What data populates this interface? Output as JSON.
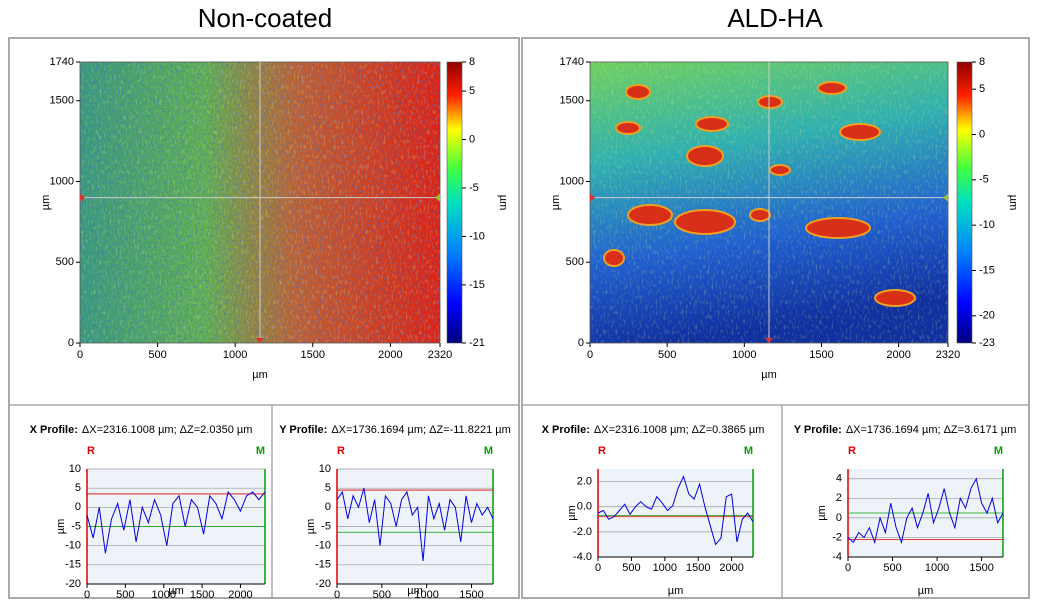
{
  "chart_data": [
    {
      "type": "heatmap",
      "title": "Non-coated",
      "xlabel": "µm",
      "ylabel": "µm",
      "colorbar_label": "µm",
      "xlim": [
        0,
        2320
      ],
      "ylim": [
        0,
        1740
      ],
      "xticks": [
        0,
        500,
        1000,
        1500,
        2000,
        2320
      ],
      "yticks": [
        0,
        500,
        1000,
        1500,
        1740
      ],
      "zlim": [
        -21,
        8
      ],
      "zticks": [
        -21,
        -15,
        -10,
        -5,
        0,
        5,
        8
      ],
      "cursor": [
        1160,
        900
      ]
    },
    {
      "type": "line",
      "title": "X Profile:",
      "subtitle": "ΔX=2316.1008 µm; ΔZ=2.0350 µm",
      "xlabel": "µm",
      "ylabel": "µm",
      "xlim": [
        0,
        2320
      ],
      "ylim": [
        -20,
        10
      ],
      "xticks": [
        0,
        500,
        1000,
        1500,
        2000
      ],
      "yticks": [
        -20,
        -15,
        -10,
        -5,
        0,
        5,
        10
      ],
      "x": [
        0,
        80,
        160,
        240,
        320,
        400,
        480,
        560,
        640,
        720,
        800,
        880,
        960,
        1040,
        1120,
        1200,
        1280,
        1360,
        1440,
        1520,
        1600,
        1680,
        1760,
        1840,
        1920,
        2000,
        2080,
        2160,
        2240,
        2320
      ],
      "series": [
        {
          "color": "#0000e0",
          "values": [
            -2,
            -8,
            0,
            -12,
            -3,
            1,
            -6,
            2,
            -9,
            0,
            -4,
            2,
            -2,
            -10,
            1,
            3,
            -5,
            2,
            0,
            -7,
            3,
            1,
            -3,
            4,
            2,
            -1,
            3,
            4,
            2,
            4
          ]
        }
      ],
      "reference_lines": [
        {
          "label": "R",
          "color": "#e00000",
          "value": 3.5
        },
        {
          "label": "M",
          "color": "#00a000",
          "value": -5
        }
      ]
    },
    {
      "type": "line",
      "title": "Y Profile:",
      "subtitle": "ΔX=1736.1694 µm; ΔZ=-11.8221 µm",
      "xlabel": "µm",
      "ylabel": "µm",
      "xlim": [
        0,
        1740
      ],
      "ylim": [
        -20,
        10
      ],
      "xticks": [
        0,
        500,
        1000,
        1500
      ],
      "yticks": [
        -20,
        -15,
        -10,
        -5,
        0,
        5,
        10
      ],
      "x": [
        0,
        60,
        120,
        180,
        240,
        300,
        360,
        420,
        480,
        540,
        600,
        660,
        720,
        780,
        840,
        900,
        960,
        1020,
        1080,
        1140,
        1200,
        1260,
        1320,
        1380,
        1440,
        1500,
        1560,
        1620,
        1680,
        1740
      ],
      "series": [
        {
          "color": "#0000e0",
          "values": [
            2,
            4,
            -3,
            3,
            0,
            5,
            -4,
            2,
            -10,
            3,
            1,
            -5,
            2,
            4,
            -2,
            0,
            -14,
            3,
            -3,
            1,
            -6,
            2,
            0,
            -9,
            3,
            -4,
            1,
            -2,
            0,
            -3
          ]
        }
      ],
      "reference_lines": [
        {
          "label": "R",
          "color": "#e00000",
          "value": 4.5
        },
        {
          "label": "M",
          "color": "#00a000",
          "value": -6.5
        }
      ]
    },
    {
      "type": "heatmap",
      "title": "ALD-HA",
      "xlabel": "µm",
      "ylabel": "µm",
      "colorbar_label": "µm",
      "xlim": [
        0,
        2320
      ],
      "ylim": [
        0,
        1740
      ],
      "xticks": [
        0,
        500,
        1000,
        1500,
        2000,
        2320
      ],
      "yticks": [
        0,
        500,
        1000,
        1500,
        1740
      ],
      "zlim": [
        -23,
        8
      ],
      "zticks": [
        -23,
        -20,
        -15,
        -10,
        -5,
        0,
        5,
        8
      ],
      "cursor": [
        1160,
        900
      ]
    },
    {
      "type": "line",
      "title": "X Profile:",
      "subtitle": "ΔX=2316.1008 µm; ΔZ=0.3865 µm",
      "xlabel": "µm",
      "ylabel": "µm",
      "xlim": [
        0,
        2320
      ],
      "ylim": [
        -4,
        3
      ],
      "xticks": [
        0,
        500,
        1000,
        1500,
        2000
      ],
      "yticks": [
        {
          "value": -4,
          "label": "-4.0"
        },
        {
          "value": -2,
          "label": "-2.0"
        },
        {
          "value": 0,
          "label": "0.0"
        },
        {
          "value": 2,
          "label": "2.0"
        }
      ],
      "x": [
        0,
        80,
        160,
        240,
        320,
        400,
        480,
        560,
        640,
        720,
        800,
        880,
        960,
        1040,
        1120,
        1200,
        1280,
        1360,
        1440,
        1520,
        1600,
        1680,
        1760,
        1840,
        1920,
        2000,
        2080,
        2160,
        2240,
        2320
      ],
      "series": [
        {
          "color": "#0000e0",
          "values": [
            -0.5,
            -0.3,
            -1.0,
            -0.8,
            -0.3,
            0.2,
            -0.6,
            0.0,
            0.4,
            0.0,
            -0.2,
            0.8,
            0.3,
            -0.3,
            0.1,
            1.5,
            2.4,
            1.0,
            0.6,
            1.8,
            0.0,
            -1.5,
            -3.0,
            -2.5,
            0.8,
            1.0,
            -2.8,
            -1.0,
            -0.5,
            -1.2
          ]
        }
      ],
      "reference_lines": [
        {
          "label": "R",
          "color": "#e00000",
          "value": -0.8
        },
        {
          "label": "M",
          "color": "#00a000",
          "value": -0.7
        }
      ]
    },
    {
      "type": "line",
      "title": "Y Profile:",
      "subtitle": "ΔX=1736.1694 µm; ΔZ=3.6171 µm",
      "xlabel": "µm",
      "ylabel": "µm",
      "xlim": [
        0,
        1740
      ],
      "ylim": [
        -4,
        5
      ],
      "xticks": [
        0,
        500,
        1000,
        1500
      ],
      "yticks": [
        -4,
        -2,
        0,
        2,
        4
      ],
      "x": [
        0,
        60,
        120,
        180,
        240,
        300,
        360,
        420,
        480,
        540,
        600,
        660,
        720,
        780,
        840,
        900,
        960,
        1020,
        1080,
        1140,
        1200,
        1260,
        1320,
        1380,
        1440,
        1500,
        1560,
        1620,
        1680,
        1740
      ],
      "series": [
        {
          "color": "#0000e0",
          "values": [
            -2,
            -2.5,
            -1.5,
            -2,
            -1,
            -2.5,
            0,
            -1.5,
            1.5,
            -1,
            -2.5,
            0,
            1,
            -1,
            0.5,
            2.5,
            -0.5,
            1,
            3,
            0.5,
            -1,
            2,
            1,
            3,
            4,
            1.5,
            0.5,
            2,
            -0.5,
            0.5
          ]
        }
      ],
      "reference_lines": [
        {
          "label": "R",
          "color": "#e00000",
          "value": -2.2
        },
        {
          "label": "M",
          "color": "#00a000",
          "value": 0.5
        }
      ]
    }
  ]
}
